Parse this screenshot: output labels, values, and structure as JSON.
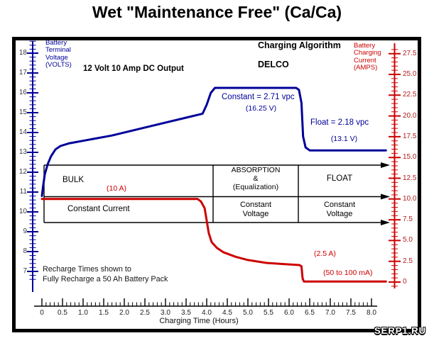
{
  "title": "Wet \"Maintenance Free\" (Ca/Ca)",
  "header": {
    "charging_algorithm": "Charging Algorithm",
    "brand": "DELCO",
    "output": "12 Volt 10 Amp DC Output"
  },
  "annotations": {
    "constant": "Constant = 2.71 vpc",
    "constant_v": "(16.25 V)",
    "float": "Float = 2.18 vpc",
    "float_v": "(13.1 V)",
    "bulk_current": "(10 A)",
    "absorb_current": "(2.5 A)",
    "float_current": "(50 to 100 mA)",
    "note": "Recharge Times shown to\nFully Recharge a 50 Ah Battery Pack"
  },
  "phase_table": {
    "rows": [
      [
        "BULK",
        "ABSORPTION\n&\n(Equalization)",
        "FLOAT"
      ],
      [
        "Constant Current",
        "Constant\nVoltage",
        "Constant\nVoltage"
      ]
    ],
    "phase_boundaries_hours": [
      4.15,
      6.22
    ]
  },
  "watermark": "SERP1.RU",
  "colors": {
    "voltage_blue": "#000099",
    "current_red": "#cc0000",
    "axis_black": "#000000"
  },
  "chart_data": {
    "type": "line",
    "title": "Wet \"Maintenance Free\" (Ca/Ca)",
    "x_axis": {
      "label": "Charging Time (Hours)",
      "ticks": [
        "0",
        "0.5",
        "1.0",
        "1.5",
        "2.0",
        "2.5",
        "3.0",
        "3.5",
        "4.0",
        "4.5",
        "5.0",
        "5.5",
        "6.0",
        "6.5",
        "7.0",
        "7.5",
        "8.0"
      ],
      "range": [
        0,
        8
      ],
      "minor_step": 0.1
    },
    "y_left": {
      "label": "Battery\nTerminal\nVoltage\n(VOLTS)",
      "ticks": [
        "18",
        "17",
        "16",
        "15",
        "14",
        "13",
        "12",
        "11",
        "10",
        "9",
        "8",
        "7"
      ],
      "range": [
        7,
        18
      ],
      "minor_step": 0.2,
      "color": "#000099"
    },
    "y_right": {
      "label": "Battery\nCharging\nCurrent\n(AMPS)",
      "ticks": [
        "27.5",
        "25.0",
        "22.5",
        "20.0",
        "17.5",
        "15.0",
        "12.5",
        "10.0",
        "7.5",
        "5.0",
        "2.5",
        "0"
      ],
      "range": [
        0,
        27.5
      ],
      "minor_step": 0.5,
      "color": "#cc0000"
    },
    "series": [
      {
        "name": "Battery Terminal Voltage",
        "axis": "left",
        "color": "#000099",
        "points": [
          [
            0,
            10.8
          ],
          [
            0.03,
            11.3
          ],
          [
            0.07,
            11.9
          ],
          [
            0.14,
            12.4
          ],
          [
            0.22,
            12.8
          ],
          [
            0.33,
            13.15
          ],
          [
            0.45,
            13.32
          ],
          [
            0.65,
            13.45
          ],
          [
            1.7,
            13.85
          ],
          [
            2.6,
            14.3
          ],
          [
            3.5,
            14.75
          ],
          [
            3.9,
            14.95
          ],
          [
            4.0,
            15.4
          ],
          [
            4.1,
            16.0
          ],
          [
            4.2,
            16.25
          ],
          [
            6.17,
            16.25
          ],
          [
            6.24,
            16.15
          ],
          [
            6.3,
            15.5
          ],
          [
            6.34,
            13.8
          ],
          [
            6.4,
            13.25
          ],
          [
            6.5,
            13.1
          ],
          [
            8.35,
            13.1
          ]
        ]
      },
      {
        "name": "Battery Charging Current",
        "axis": "right",
        "color": "#cc0000",
        "points": [
          [
            0,
            10
          ],
          [
            3.78,
            10
          ],
          [
            3.86,
            9.7
          ],
          [
            3.95,
            8.9
          ],
          [
            4.0,
            7.4
          ],
          [
            4.05,
            5.9
          ],
          [
            4.12,
            4.8
          ],
          [
            4.25,
            4.1
          ],
          [
            4.4,
            3.6
          ],
          [
            4.7,
            3.05
          ],
          [
            5.0,
            2.65
          ],
          [
            5.45,
            2.3
          ],
          [
            5.9,
            2.15
          ],
          [
            6.25,
            2.05
          ],
          [
            6.3,
            1.9
          ],
          [
            6.33,
            0.4
          ],
          [
            6.36,
            0.07
          ],
          [
            8.35,
            0.07
          ]
        ]
      }
    ],
    "key_values": {
      "bulk_current_amps": 10,
      "absorption_voltage": 16.25,
      "absorption_vpc": 2.71,
      "float_voltage": 13.1,
      "float_vpc": 2.18,
      "absorption_end_current_amps": 2.5,
      "float_current": "50 to 100 mA"
    },
    "legend_position": "none",
    "grid": false
  }
}
